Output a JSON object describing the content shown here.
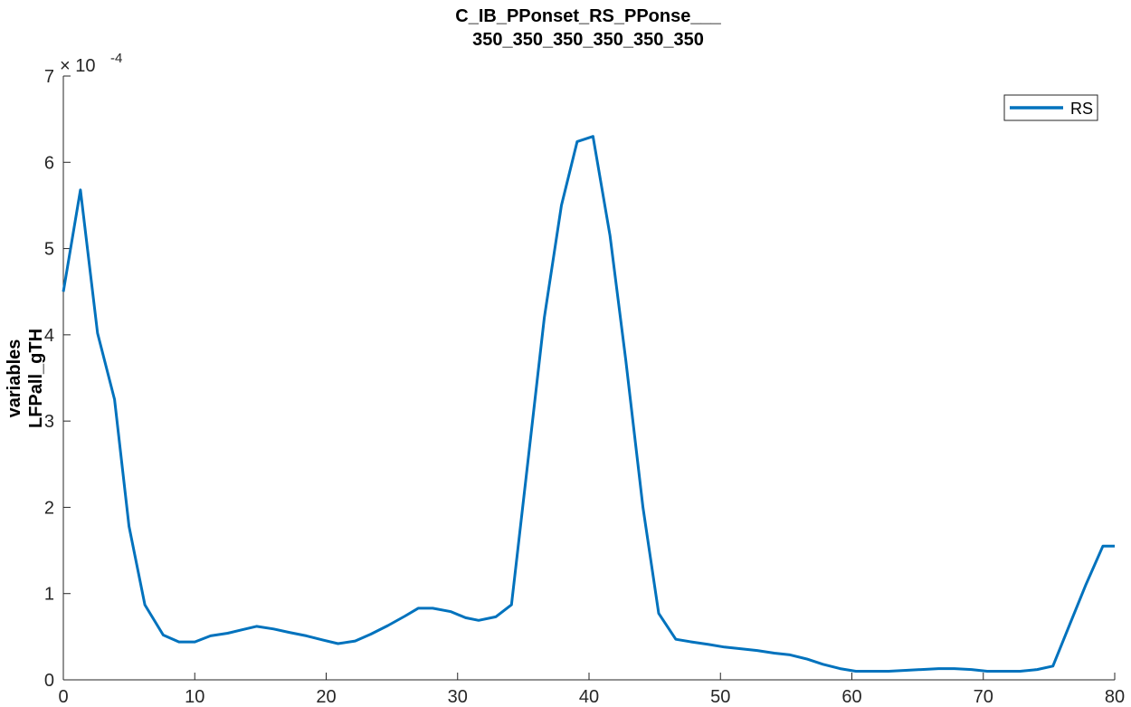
{
  "chart_data": {
    "type": "line",
    "title_line1": "C_IB_PPonset_RS_PPonse___",
    "title_line2": "350_350_350_350_350_350",
    "ylabel_line1": "variables",
    "ylabel_line2": "LFPall_gTH",
    "xlabel": "",
    "exponent_base": "× 10",
    "exponent_power": "-4",
    "xlim": [
      0,
      80
    ],
    "ylim": [
      0,
      7
    ],
    "x_ticks": [
      0,
      10,
      20,
      30,
      40,
      50,
      60,
      70,
      80
    ],
    "y_ticks": [
      0,
      1,
      2,
      3,
      4,
      5,
      6,
      7
    ],
    "legend": {
      "label": "RS",
      "position": "top-right"
    },
    "series": [
      {
        "name": "RS",
        "color": "#0072BD",
        "x": [
          0,
          1.3,
          2.6,
          3.9,
          5.0,
          6.2,
          7.6,
          8.8,
          10.0,
          11.2,
          12.5,
          13.6,
          14.7,
          16.0,
          17.2,
          18.5,
          19.8,
          20.9,
          22.2,
          23.4,
          24.7,
          26.0,
          27.0,
          28.1,
          29.5,
          30.6,
          31.6,
          32.9,
          34.1,
          35.4,
          36.6,
          37.9,
          39.1,
          40.3,
          41.6,
          42.8,
          44.1,
          45.3,
          46.6,
          47.8,
          49.1,
          50.3,
          51.6,
          52.8,
          54.1,
          55.3,
          56.6,
          57.8,
          59.1,
          60.3,
          61.6,
          62.8,
          64.1,
          65.3,
          66.6,
          67.8,
          69.1,
          70.3,
          71.6,
          72.8,
          74.1,
          75.3,
          76.6,
          77.8,
          79.1,
          80.0
        ],
        "y": [
          4.5,
          5.68,
          4.02,
          3.25,
          1.78,
          0.87,
          0.52,
          0.44,
          0.44,
          0.51,
          0.54,
          0.58,
          0.62,
          0.59,
          0.55,
          0.51,
          0.46,
          0.42,
          0.45,
          0.53,
          0.63,
          0.74,
          0.83,
          0.83,
          0.79,
          0.72,
          0.69,
          0.73,
          0.87,
          2.6,
          4.2,
          5.5,
          6.24,
          6.3,
          5.15,
          3.7,
          2.0,
          0.77,
          0.47,
          0.44,
          0.41,
          0.38,
          0.36,
          0.34,
          0.31,
          0.29,
          0.24,
          0.18,
          0.13,
          0.1,
          0.1,
          0.1,
          0.11,
          0.12,
          0.13,
          0.13,
          0.12,
          0.1,
          0.1,
          0.1,
          0.12,
          0.16,
          0.65,
          1.1,
          1.55,
          1.55
        ]
      }
    ],
    "grid": false
  }
}
